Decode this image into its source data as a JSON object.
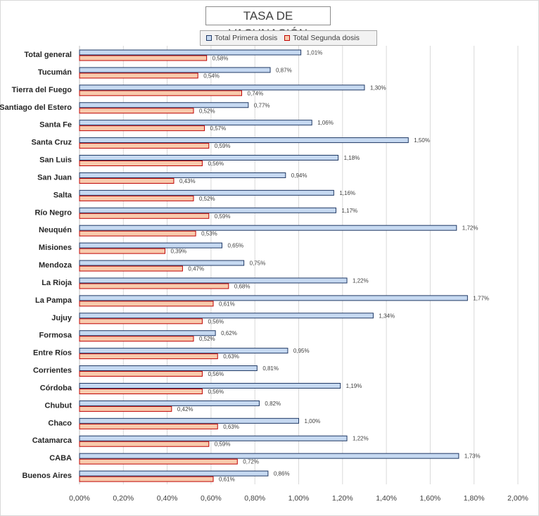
{
  "chart_data": {
    "type": "bar",
    "orientation": "horizontal",
    "title": "TASA DE VACUNACIÓN",
    "categories": [
      "Total general",
      "Tucumán",
      "Tierra del Fuego",
      "Santiago del Estero",
      "Santa Fe",
      "Santa Cruz",
      "San Luis",
      "San Juan",
      "Salta",
      "Río Negro",
      "Neuquén",
      "Misiones",
      "Mendoza",
      "La Rioja",
      "La Pampa",
      "Jujuy",
      "Formosa",
      "Entre Ríos",
      "Corrientes",
      "Córdoba",
      "Chubut",
      "Chaco",
      "Catamarca",
      "CABA",
      "Buenos Aires"
    ],
    "series": [
      {
        "name": "Total Primera dosis",
        "values": [
          1.01,
          0.87,
          1.3,
          0.77,
          1.06,
          1.5,
          1.18,
          0.94,
          1.16,
          1.17,
          1.72,
          0.65,
          0.75,
          1.22,
          1.77,
          1.34,
          0.62,
          0.95,
          0.81,
          1.19,
          0.82,
          1.0,
          1.22,
          1.73,
          0.86
        ],
        "labels": [
          "1,01%",
          "0,87%",
          "1,30%",
          "0,77%",
          "1,06%",
          "1,50%",
          "1,18%",
          "0,94%",
          "1,16%",
          "1,17%",
          "1,72%",
          "0,65%",
          "0,75%",
          "1,22%",
          "1,77%",
          "1,34%",
          "0,62%",
          "0,95%",
          "0,81%",
          "1,19%",
          "0,82%",
          "1,00%",
          "1,22%",
          "1,73%",
          "0,86%"
        ],
        "fill": "#c6d9f1",
        "stroke": "#1f3864"
      },
      {
        "name": "Total Segunda dosis",
        "values": [
          0.58,
          0.54,
          0.74,
          0.52,
          0.57,
          0.59,
          0.56,
          0.43,
          0.52,
          0.59,
          0.53,
          0.39,
          0.47,
          0.68,
          0.61,
          0.56,
          0.52,
          0.63,
          0.56,
          0.56,
          0.42,
          0.63,
          0.59,
          0.72,
          0.61
        ],
        "labels": [
          "0,58%",
          "0,54%",
          "0,74%",
          "0,52%",
          "0,57%",
          "0,59%",
          "0,56%",
          "0,43%",
          "0,52%",
          "0,59%",
          "0,53%",
          "0,39%",
          "0,47%",
          "0,68%",
          "0,61%",
          "0,56%",
          "0,52%",
          "0,63%",
          "0,56%",
          "0,56%",
          "0,42%",
          "0,63%",
          "0,59%",
          "0,72%",
          "0,61%"
        ],
        "fill": "#f8cbad",
        "stroke": "#c00000"
      }
    ],
    "xlim": [
      0,
      2.0
    ],
    "xticks": [
      "0,00%",
      "0,20%",
      "0,40%",
      "0,60%",
      "0,80%",
      "1,00%",
      "1,20%",
      "1,40%",
      "1,60%",
      "1,80%",
      "2,00%"
    ],
    "grid": true,
    "legend_position": "top"
  }
}
